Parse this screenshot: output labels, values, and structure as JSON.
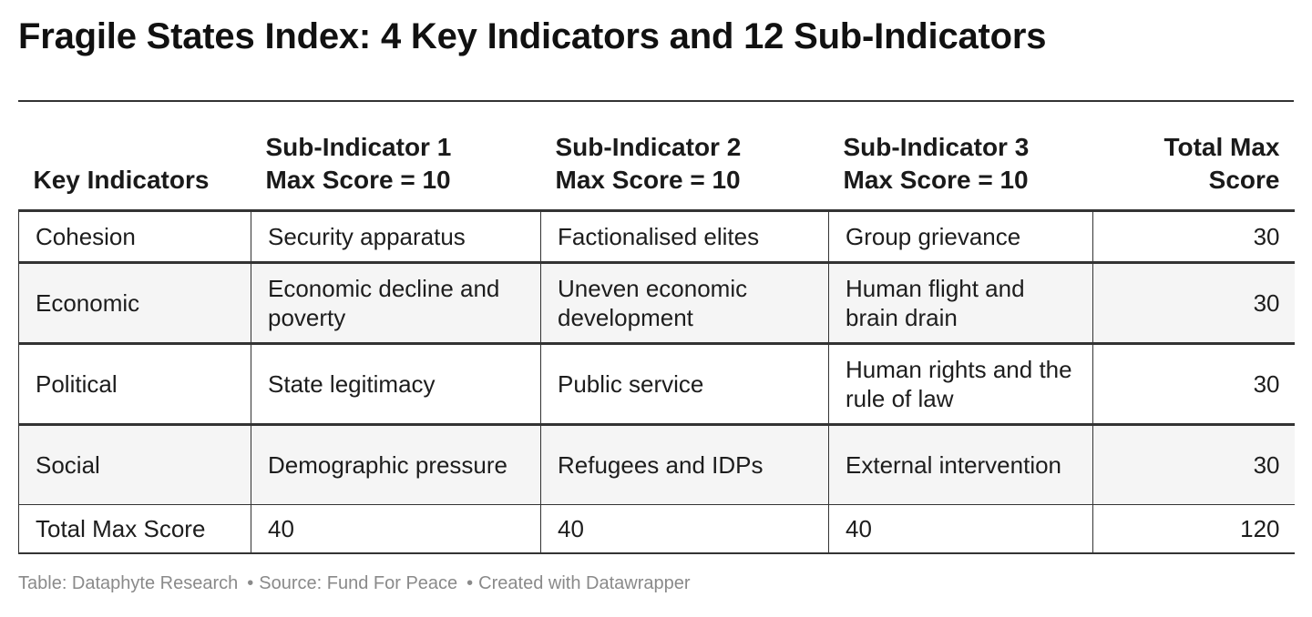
{
  "title": "Fragile States Index: 4 Key Indicators and 12 Sub-Indicators",
  "chart_data": {
    "type": "table",
    "title": "Fragile States Index: 4 Key Indicators and 12 Sub-Indicators",
    "columns": [
      {
        "line1": "Key Indicators",
        "line2": ""
      },
      {
        "line1": "Sub-Indicator 1",
        "line2": "Max Score = 10"
      },
      {
        "line1": "Sub-Indicator 2",
        "line2": "Max Score = 10"
      },
      {
        "line1": "Sub-Indicator 3",
        "line2": "Max Score = 10"
      },
      {
        "line1": "Total Max",
        "line2": "Score"
      }
    ],
    "rows": [
      {
        "indicator": "Cohesion",
        "sub1": "Security apparatus",
        "sub2": "Factionalised elites",
        "sub3": "Group grievance",
        "total": "30"
      },
      {
        "indicator": "Economic",
        "sub1": "Economic decline and poverty",
        "sub2": "Uneven economic development",
        "sub3": "Human flight and brain drain",
        "total": "30"
      },
      {
        "indicator": "Political",
        "sub1": "State legitimacy",
        "sub2": "Public service",
        "sub3": "Human rights and the rule of law",
        "total": "30"
      },
      {
        "indicator": "Social",
        "sub1": "Demographic pressure",
        "sub2": "Refugees and IDPs",
        "sub3": "External intervention",
        "total": "30"
      },
      {
        "indicator": "Total Max Score",
        "sub1": "40",
        "sub2": "40",
        "sub3": "40",
        "total": "120"
      }
    ]
  },
  "footer": {
    "table_credit": "Table: Dataphyte Research",
    "source": "Source: Fund For Peace",
    "created_with": "Created with Datawrapper",
    "separator": "•"
  }
}
